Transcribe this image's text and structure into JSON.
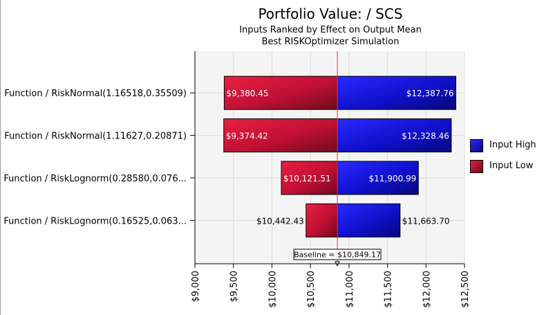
{
  "titles": {
    "main": "Portfolio Value: / SCS",
    "sub1": "Inputs Ranked by Effect on Output Mean",
    "sub2": "Best RISKOptimizer Simulation"
  },
  "legend": [
    {
      "label": "Input High",
      "color": "#1010d0"
    },
    {
      "label": "Input Low",
      "color": "#c8103a"
    }
  ],
  "chart_data": {
    "type": "bar",
    "orientation": "horizontal",
    "subtype": "tornado",
    "title": "Portfolio Value: / SCS",
    "subtitle": [
      "Inputs Ranked by Effect on Output Mean",
      "Best RISKOptimizer Simulation"
    ],
    "baseline": 10849.17,
    "baseline_label": "Baseline = $10,849.17",
    "xlim": [
      9000,
      12500
    ],
    "x_ticks": [
      9000,
      9500,
      10000,
      10500,
      11000,
      11500,
      12000,
      12500
    ],
    "x_tick_labels": [
      "$9,000",
      "$9,500",
      "$10,000",
      "$10,500",
      "$11,000",
      "$11,500",
      "$12,000",
      "$12,500"
    ],
    "grid": true,
    "legend_position": "right",
    "categories": [
      "Function / RiskNormal(1.16518,0.35509)",
      "Function / RiskNormal(1.11627,0.20871)",
      "Function / RiskLognorm(0.28580,0.076...",
      "Function / RiskLognorm(0.16525,0.063..."
    ],
    "series": [
      {
        "name": "Input High",
        "values": [
          12387.76,
          12328.46,
          11900.99,
          11663.7
        ],
        "labels": [
          "$12,387.76",
          "$12,328.46",
          "$11,900.99",
          "$11,663.70"
        ]
      },
      {
        "name": "Input Low",
        "values": [
          9380.45,
          9374.42,
          10121.51,
          10442.43
        ],
        "labels": [
          "$9,380.45",
          "$9,374.42",
          "$10,121.51",
          "$10,442.43"
        ]
      }
    ]
  }
}
